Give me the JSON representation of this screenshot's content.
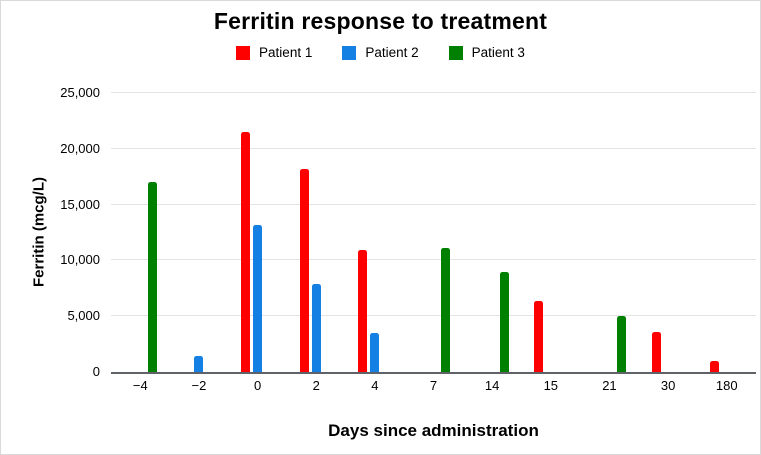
{
  "chart_data": {
    "type": "bar",
    "title": "Ferritin response to treatment",
    "xlabel": "Days since administration",
    "ylabel": "Ferritin (mcg/L)",
    "categories": [
      "−4",
      "−2",
      "0",
      "2",
      "4",
      "7",
      "14",
      "15",
      "21",
      "30",
      "180"
    ],
    "ylim": [
      0,
      25000
    ],
    "ytick_interval": 5000,
    "ytick_labels": [
      "0",
      "5,000",
      "10,000",
      "15,000",
      "20,000",
      "25,000"
    ],
    "grid": true,
    "legend_position": "top",
    "series": [
      {
        "name": "Patient 1",
        "color": "#ff0000",
        "values": [
          null,
          null,
          21500,
          18200,
          10900,
          null,
          null,
          6400,
          null,
          3600,
          1000
        ]
      },
      {
        "name": "Patient 2",
        "color": "#1580e4",
        "values": [
          null,
          1400,
          13200,
          7900,
          3500,
          null,
          null,
          null,
          null,
          null,
          null
        ]
      },
      {
        "name": "Patient 3",
        "color": "#008000",
        "values": [
          17000,
          null,
          null,
          null,
          null,
          11100,
          9000,
          null,
          5000,
          null,
          null
        ]
      }
    ],
    "axis_colors": {
      "baseline": "#5f6368",
      "gridline": "#e3e3e3",
      "text": "#000000"
    }
  }
}
